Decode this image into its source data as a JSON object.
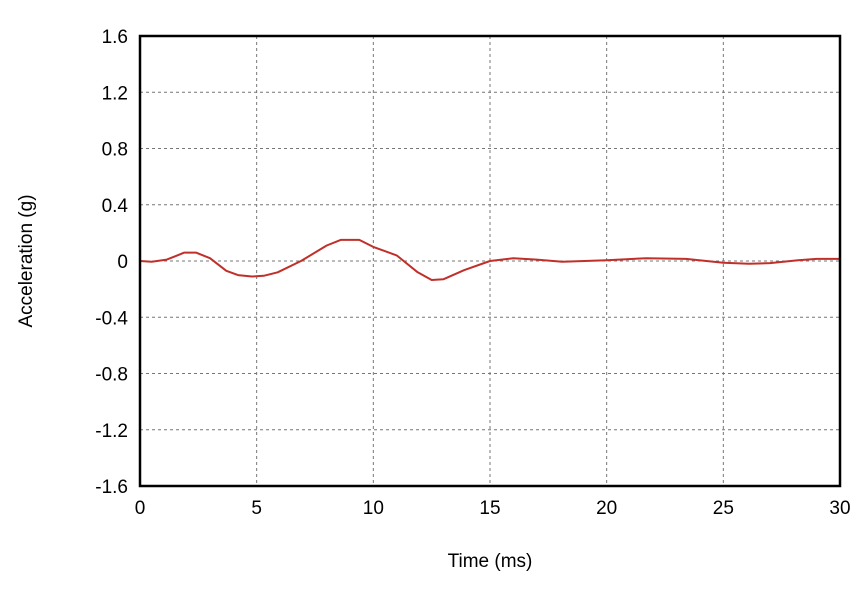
{
  "chart_data": {
    "type": "line",
    "title": "",
    "xlabel": "Time (ms)",
    "ylabel": "Acceleration (g)",
    "xlim": [
      0,
      30
    ],
    "ylim": [
      -1.6,
      1.6
    ],
    "xticks": [
      0,
      5,
      10,
      15,
      20,
      25,
      30
    ],
    "yticks": [
      -1.6,
      -1.2,
      -0.8,
      -0.4,
      0,
      0.4,
      0.8,
      1.2,
      1.6
    ],
    "grid": true,
    "line_color": "#c0302a",
    "series": [
      {
        "x": [
          0,
          0.5,
          1.15,
          1.6,
          1.9,
          2.4,
          3.0,
          3.7,
          4.2,
          4.8,
          5.3,
          5.9,
          6.9,
          8.0,
          8.6,
          9.4,
          10.0,
          11.0,
          11.9,
          12.5,
          13.0,
          13.9,
          15.0,
          16.0,
          17.0,
          18.1,
          20.0,
          21.7,
          23.4,
          25.0,
          26.1,
          27.0,
          28.2,
          29.0,
          30.0
        ],
        "y": [
          0,
          -0.005,
          0.01,
          0.04,
          0.06,
          0.06,
          0.02,
          -0.07,
          -0.1,
          -0.11,
          -0.105,
          -0.08,
          0,
          0.11,
          0.15,
          0.15,
          0.1,
          0.04,
          -0.08,
          -0.135,
          -0.13,
          -0.065,
          0,
          0.02,
          0.01,
          -0.005,
          0.005,
          0.02,
          0.015,
          -0.012,
          -0.02,
          -0.015,
          0.005,
          0.015,
          0.015
        ]
      }
    ]
  }
}
